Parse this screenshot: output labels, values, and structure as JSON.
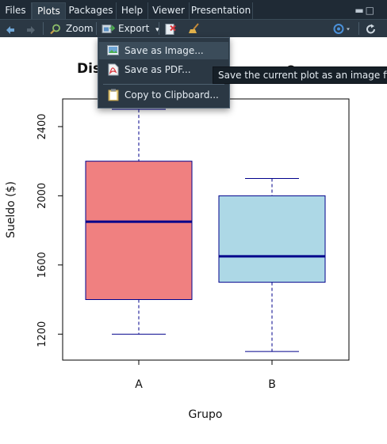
{
  "tabs": [
    {
      "label": "Files"
    },
    {
      "label": "Plots"
    },
    {
      "label": "Packages"
    },
    {
      "label": "Help"
    },
    {
      "label": "Viewer"
    },
    {
      "label": "Presentation"
    }
  ],
  "toolbar": {
    "zoom_label": "Zoom",
    "export_label": "Export",
    "export_caret": "▾"
  },
  "export_menu": {
    "items": [
      {
        "label": "Save as Image..."
      },
      {
        "label": "Save as PDF..."
      },
      {
        "label": "Copy to Clipboard..."
      }
    ]
  },
  "tooltip": "Save the current plot as an image file",
  "chart_data": {
    "type": "boxplot",
    "title_visible_fragments": [
      "Dis",
      "o"
    ],
    "xlabel": "Grupo",
    "ylabel": "Sueldo ($)",
    "ylim": [
      1050,
      2560
    ],
    "yticks": [
      1200,
      1600,
      2000,
      2400
    ],
    "categories": [
      "A",
      "B"
    ],
    "series": [
      {
        "category": "A",
        "min": 1200,
        "q1": 1400,
        "median": 1850,
        "q3": 2200,
        "max": 2500,
        "fill": "#f08080"
      },
      {
        "category": "B",
        "min": 1100,
        "q1": 1500,
        "median": 1650,
        "q3": 2000,
        "max": 2100,
        "fill": "#add8e6"
      }
    ],
    "border_color": "#00008b",
    "median_color": "#00008b"
  },
  "colors": {
    "panel_bg": "#1f2a35",
    "toolbar_bg": "#2b3844",
    "menu_hover": "#3b4c5a",
    "tooltip_bg": "#161f27"
  }
}
